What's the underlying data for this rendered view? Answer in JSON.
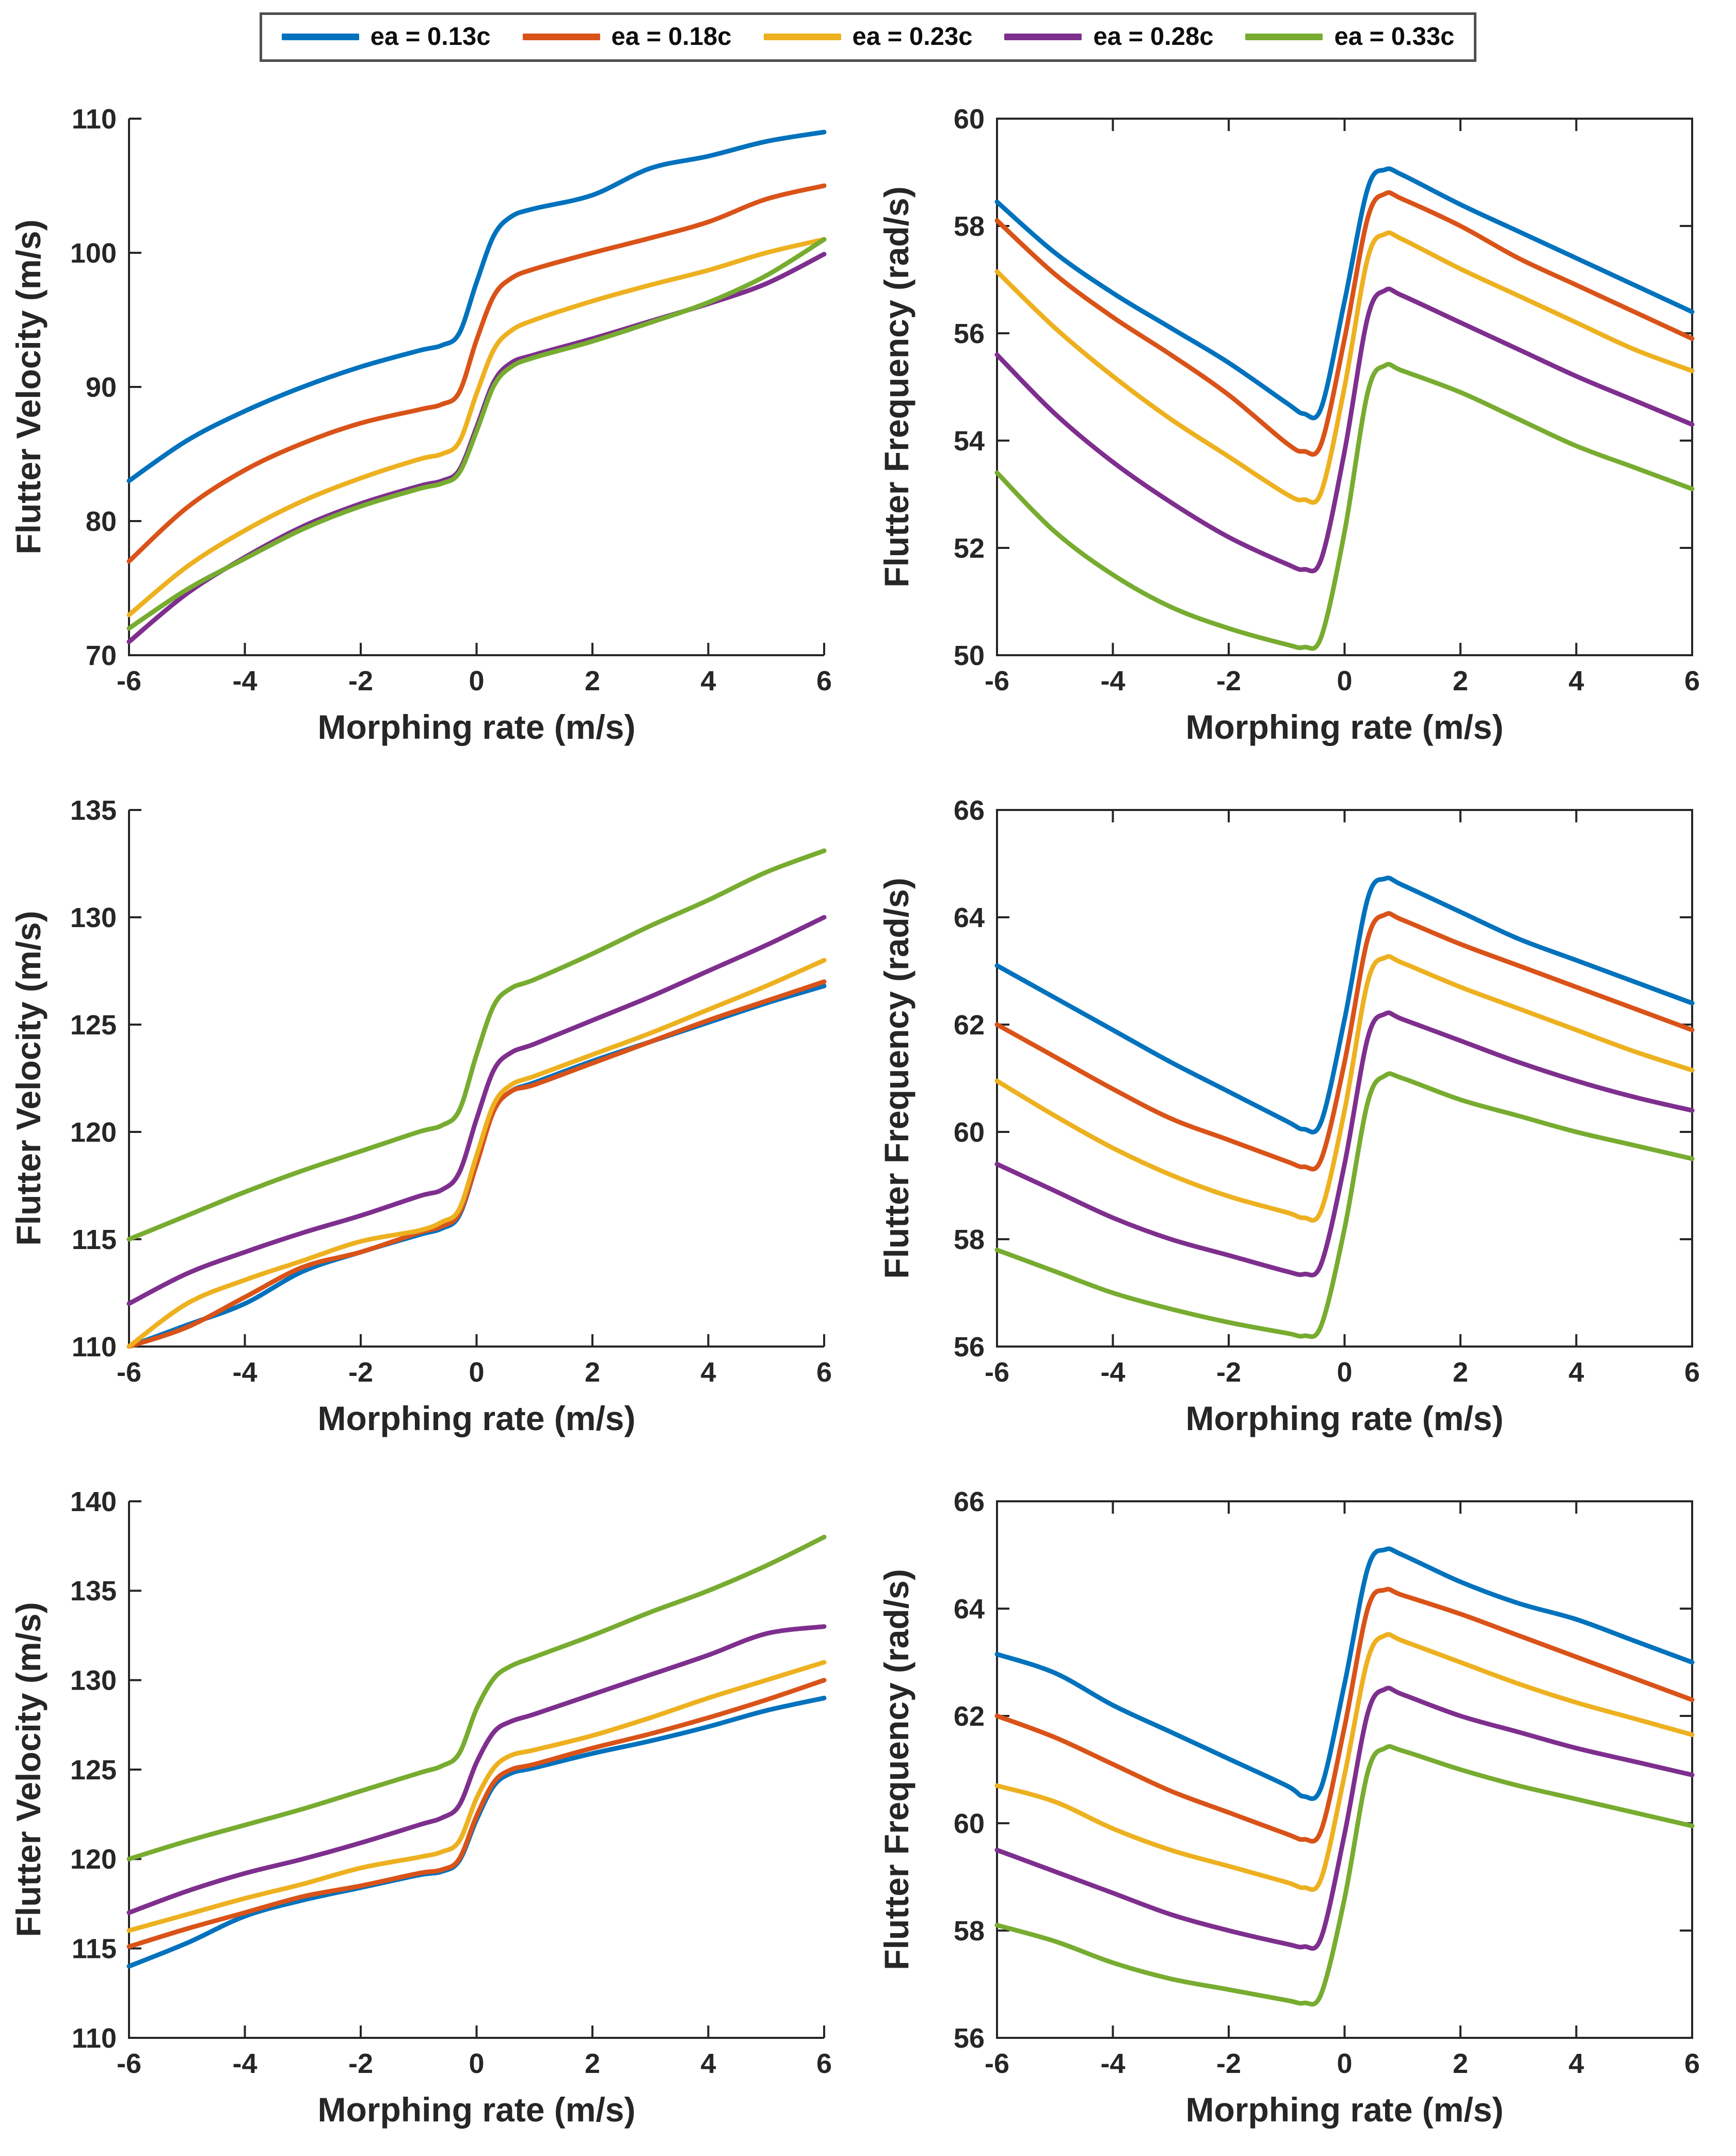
{
  "figure": {
    "background": "#ffffff",
    "axis_color": "#262626",
    "text_color": "#262626"
  },
  "legend": {
    "border_color": "#4f4f4f",
    "items": [
      {
        "label": "ea = 0.13c",
        "color": "#0072BD"
      },
      {
        "label": "ea = 0.18c",
        "color": "#D95319"
      },
      {
        "label": "ea = 0.23c",
        "color": "#EDB120"
      },
      {
        "label": "ea = 0.28c",
        "color": "#7E2F8E"
      },
      {
        "label": "ea = 0.33c",
        "color": "#77AC30"
      }
    ]
  },
  "chart_data": [
    {
      "type": "line",
      "position": "row1-left",
      "xlabel": "Morphing rate (m/s)",
      "ylabel": "Flutter Velocity (m/s)",
      "xlim": [
        -6,
        6
      ],
      "ylim": [
        70,
        110
      ],
      "xticks": [
        -6,
        -4,
        -2,
        0,
        2,
        4,
        6
      ],
      "yticks": [
        70,
        80,
        90,
        100,
        110
      ],
      "box": false,
      "grid": false,
      "x": [
        -6,
        -5,
        -4,
        -3,
        -2,
        -1,
        -0.6,
        -0.3,
        0,
        0.3,
        0.6,
        1,
        2,
        3,
        4,
        5,
        6
      ],
      "series": [
        {
          "name": "ea = 0.13c",
          "color": "#0072BD",
          "values": [
            83,
            86,
            88.2,
            90,
            91.5,
            92.7,
            93.1,
            94,
            97.8,
            101.3,
            102.7,
            103.3,
            104.3,
            106.3,
            107.2,
            108.3,
            109
          ]
        },
        {
          "name": "ea = 0.18c",
          "color": "#D95319",
          "values": [
            77,
            81,
            83.8,
            85.8,
            87.3,
            88.3,
            88.7,
            89.6,
            93.5,
            96.8,
            98.1,
            98.8,
            100,
            101.1,
            102.3,
            104,
            105
          ]
        },
        {
          "name": "ea = 0.23c",
          "color": "#EDB120",
          "values": [
            73,
            76.6,
            79.3,
            81.5,
            83.2,
            84.6,
            85,
            85.9,
            89.5,
            92.8,
            94.2,
            95,
            96.4,
            97.6,
            98.7,
            100,
            101
          ]
        },
        {
          "name": "ea = 0.28c",
          "color": "#7E2F8E",
          "values": [
            71,
            74.6,
            77.3,
            79.6,
            81.3,
            82.6,
            83,
            83.8,
            87,
            90.4,
            91.8,
            92.4,
            93.6,
            94.9,
            96.2,
            97.7,
            99.9
          ]
        },
        {
          "name": "ea = 0.33c",
          "color": "#77AC30",
          "values": [
            72,
            74.9,
            77.2,
            79.4,
            81.1,
            82.4,
            82.8,
            83.6,
            86.7,
            90.1,
            91.5,
            92.2,
            93.4,
            94.8,
            96.3,
            98.3,
            101
          ]
        }
      ]
    },
    {
      "type": "line",
      "position": "row1-right",
      "xlabel": "Morphing rate (m/s)",
      "ylabel": "Flutter Frequency (rad/s)",
      "xlim": [
        -6,
        6
      ],
      "ylim": [
        50,
        60
      ],
      "xticks": [
        -6,
        -4,
        -2,
        0,
        2,
        4,
        6
      ],
      "yticks": [
        50,
        52,
        54,
        56,
        58,
        60
      ],
      "box": true,
      "grid": false,
      "x": [
        -6,
        -5,
        -4,
        -3,
        -2,
        -1,
        -0.7,
        -0.4,
        0,
        0.4,
        0.7,
        1,
        2,
        3,
        4,
        5,
        6
      ],
      "series": [
        {
          "name": "ea = 0.13c",
          "color": "#0072BD",
          "values": [
            58.45,
            57.5,
            56.75,
            56.1,
            55.45,
            54.7,
            54.5,
            54.62,
            56.6,
            58.7,
            59.05,
            58.95,
            58.4,
            57.9,
            57.4,
            56.9,
            56.4
          ]
        },
        {
          "name": "ea = 0.18c",
          "color": "#D95319",
          "values": [
            58.1,
            57.1,
            56.3,
            55.6,
            54.85,
            53.95,
            53.8,
            53.95,
            55.9,
            58.15,
            58.6,
            58.5,
            58,
            57.4,
            56.9,
            56.4,
            55.9
          ]
        },
        {
          "name": "ea = 0.23c",
          "color": "#EDB120",
          "values": [
            57.15,
            56.1,
            55.2,
            54.4,
            53.7,
            53,
            52.9,
            53.05,
            55,
            57.4,
            57.85,
            57.75,
            57.2,
            56.7,
            56.2,
            55.7,
            55.3
          ]
        },
        {
          "name": "ea = 0.28c",
          "color": "#7E2F8E",
          "values": [
            55.6,
            54.5,
            53.6,
            52.85,
            52.2,
            51.7,
            51.6,
            51.8,
            53.8,
            56.3,
            56.8,
            56.7,
            56.2,
            55.7,
            55.2,
            54.75,
            54.3
          ]
        },
        {
          "name": "ea = 0.33c",
          "color": "#77AC30",
          "values": [
            53.4,
            52.3,
            51.5,
            50.9,
            50.5,
            50.2,
            50.15,
            50.35,
            52.3,
            54.9,
            55.4,
            55.3,
            54.9,
            54.4,
            53.9,
            53.5,
            53.1
          ]
        }
      ]
    },
    {
      "type": "line",
      "position": "row2-left",
      "xlabel": "Morphing rate (m/s)",
      "ylabel": "Flutter Velocity (m/s)",
      "xlim": [
        -6,
        6
      ],
      "ylim": [
        110,
        135
      ],
      "xticks": [
        -6,
        -4,
        -2,
        0,
        2,
        4,
        6
      ],
      "yticks": [
        110,
        115,
        120,
        125,
        130,
        135
      ],
      "box": false,
      "grid": false,
      "x": [
        -6,
        -5,
        -4,
        -3,
        -2,
        -1,
        -0.6,
        -0.3,
        0,
        0.3,
        0.6,
        1,
        2,
        3,
        4,
        5,
        6
      ],
      "series": [
        {
          "name": "ea = 0.13c",
          "color": "#0072BD",
          "values": [
            110,
            111,
            112,
            113.5,
            114.4,
            115.2,
            115.5,
            116.1,
            118.5,
            121,
            121.9,
            122.3,
            123.3,
            124.2,
            125.1,
            126,
            126.8
          ]
        },
        {
          "name": "ea = 0.18c",
          "color": "#D95319",
          "values": [
            110,
            110.9,
            112.3,
            113.7,
            114.4,
            115.3,
            115.6,
            116.2,
            118.5,
            121,
            121.9,
            122.2,
            123.2,
            124.2,
            125.2,
            126.1,
            127
          ]
        },
        {
          "name": "ea = 0.23c",
          "color": "#EDB120",
          "values": [
            110,
            112,
            113.1,
            114,
            114.9,
            115.4,
            115.8,
            116.4,
            118.9,
            121.3,
            122.2,
            122.6,
            123.6,
            124.6,
            125.7,
            126.8,
            128
          ]
        },
        {
          "name": "ea = 0.28c",
          "color": "#7E2F8E",
          "values": [
            112,
            113.4,
            114.4,
            115.3,
            116.1,
            117,
            117.3,
            118.1,
            120.6,
            122.9,
            123.7,
            124.1,
            125.2,
            126.3,
            127.5,
            128.7,
            130
          ]
        },
        {
          "name": "ea = 0.33c",
          "color": "#77AC30",
          "values": [
            115,
            116.1,
            117.2,
            118.2,
            119.1,
            120,
            120.3,
            121,
            123.6,
            125.9,
            126.7,
            127.1,
            128.3,
            129.6,
            130.8,
            132.1,
            133.1
          ]
        }
      ]
    },
    {
      "type": "line",
      "position": "row2-right",
      "xlabel": "Morphing rate (m/s)",
      "ylabel": "Flutter Frequency (rad/s)",
      "xlim": [
        -6,
        6
      ],
      "ylim": [
        56,
        66
      ],
      "xticks": [
        -6,
        -4,
        -2,
        0,
        2,
        4,
        6
      ],
      "yticks": [
        56,
        58,
        60,
        62,
        64,
        66
      ],
      "box": true,
      "grid": false,
      "x": [
        -6,
        -5,
        -4,
        -3,
        -2,
        -1,
        -0.7,
        -0.4,
        0,
        0.4,
        0.7,
        1,
        2,
        3,
        4,
        5,
        6
      ],
      "series": [
        {
          "name": "ea = 0.13c",
          "color": "#0072BD",
          "values": [
            63.1,
            62.5,
            61.9,
            61.3,
            60.75,
            60.2,
            60.05,
            60.2,
            62.1,
            64.35,
            64.72,
            64.6,
            64.1,
            63.6,
            63.2,
            62.8,
            62.4
          ]
        },
        {
          "name": "ea = 0.18c",
          "color": "#D95319",
          "values": [
            62,
            61.4,
            60.8,
            60.25,
            59.85,
            59.45,
            59.35,
            59.5,
            61.3,
            63.6,
            64.05,
            63.95,
            63.5,
            63.1,
            62.7,
            62.3,
            61.9
          ]
        },
        {
          "name": "ea = 0.23c",
          "color": "#EDB120",
          "values": [
            60.95,
            60.3,
            59.7,
            59.2,
            58.8,
            58.5,
            58.4,
            58.55,
            60.4,
            62.8,
            63.25,
            63.15,
            62.7,
            62.3,
            61.9,
            61.5,
            61.15
          ]
        },
        {
          "name": "ea = 0.28c",
          "color": "#7E2F8E",
          "values": [
            59.4,
            58.9,
            58.4,
            58,
            57.7,
            57.4,
            57.35,
            57.55,
            59.4,
            61.75,
            62.2,
            62.1,
            61.7,
            61.3,
            60.95,
            60.65,
            60.4
          ]
        },
        {
          "name": "ea = 0.33c",
          "color": "#77AC30",
          "values": [
            57.8,
            57.4,
            57,
            56.7,
            56.45,
            56.25,
            56.2,
            56.4,
            58.2,
            60.55,
            61.05,
            61,
            60.6,
            60.3,
            60,
            59.75,
            59.5
          ]
        }
      ]
    },
    {
      "type": "line",
      "position": "row3-left",
      "xlabel": "Morphing rate (m/s)",
      "ylabel": "Flutter Velocity (m/s)",
      "xlim": [
        -6,
        6
      ],
      "ylim": [
        110,
        140
      ],
      "xticks": [
        -6,
        -4,
        -2,
        0,
        2,
        4,
        6
      ],
      "yticks": [
        110,
        115,
        120,
        125,
        130,
        135,
        140
      ],
      "box": false,
      "grid": false,
      "x": [
        -6,
        -5,
        -4,
        -3,
        -2,
        -1,
        -0.6,
        -0.3,
        0,
        0.3,
        0.6,
        1,
        2,
        3,
        4,
        5,
        6
      ],
      "series": [
        {
          "name": "ea = 0.13c",
          "color": "#0072BD",
          "values": [
            114,
            115.3,
            116.8,
            117.7,
            118.4,
            119.1,
            119.3,
            119.9,
            122.2,
            124.1,
            124.8,
            125.1,
            125.9,
            126.6,
            127.4,
            128.3,
            129
          ]
        },
        {
          "name": "ea = 0.18c",
          "color": "#D95319",
          "values": [
            115.1,
            116.1,
            117,
            117.9,
            118.5,
            119.2,
            119.4,
            120,
            122.4,
            124.3,
            125,
            125.3,
            126.2,
            127,
            127.9,
            128.9,
            130
          ]
        },
        {
          "name": "ea = 0.23c",
          "color": "#EDB120",
          "values": [
            116,
            116.9,
            117.8,
            118.6,
            119.5,
            120.1,
            120.4,
            121,
            123.4,
            125.1,
            125.8,
            126.1,
            126.9,
            127.9,
            129,
            130,
            131
          ]
        },
        {
          "name": "ea = 0.28c",
          "color": "#7E2F8E",
          "values": [
            117,
            118.2,
            119.2,
            120,
            120.9,
            121.9,
            122.3,
            123,
            125.4,
            127.1,
            127.7,
            128.1,
            129.2,
            130.3,
            131.4,
            132.6,
            133
          ]
        },
        {
          "name": "ea = 0.33c",
          "color": "#77AC30",
          "values": [
            120,
            121,
            121.9,
            122.8,
            123.8,
            124.8,
            125.2,
            125.9,
            128.4,
            130.1,
            130.8,
            131.3,
            132.5,
            133.8,
            135,
            136.4,
            138
          ]
        }
      ]
    },
    {
      "type": "line",
      "position": "row3-right",
      "xlabel": "Morphing rate (m/s)",
      "ylabel": "Flutter Frequency (rad/s)",
      "xlim": [
        -6,
        6
      ],
      "ylim": [
        56,
        66
      ],
      "xticks": [
        -6,
        -4,
        -2,
        0,
        2,
        4,
        6
      ],
      "yticks": [
        56,
        58,
        60,
        62,
        64,
        66
      ],
      "box": true,
      "grid": false,
      "x": [
        -6,
        -5,
        -4,
        -3,
        -2,
        -1,
        -0.7,
        -0.4,
        0,
        0.4,
        0.7,
        1,
        2,
        3,
        4,
        5,
        6
      ],
      "series": [
        {
          "name": "ea = 0.13c",
          "color": "#0072BD",
          "values": [
            63.15,
            62.8,
            62.2,
            61.7,
            61.2,
            60.7,
            60.5,
            60.68,
            62.6,
            64.75,
            65.1,
            65,
            64.5,
            64.1,
            63.8,
            63.4,
            63
          ]
        },
        {
          "name": "ea = 0.18c",
          "color": "#D95319",
          "values": [
            62,
            61.6,
            61.1,
            60.6,
            60.2,
            59.8,
            59.7,
            59.88,
            61.8,
            64,
            64.35,
            64.25,
            63.9,
            63.5,
            63.1,
            62.7,
            62.3
          ]
        },
        {
          "name": "ea = 0.23c",
          "color": "#EDB120",
          "values": [
            60.7,
            60.4,
            59.9,
            59.5,
            59.2,
            58.9,
            58.8,
            58.98,
            60.9,
            63.05,
            63.5,
            63.4,
            63,
            62.6,
            62.25,
            61.95,
            61.65
          ]
        },
        {
          "name": "ea = 0.28c",
          "color": "#7E2F8E",
          "values": [
            59.5,
            59.1,
            58.7,
            58.3,
            58,
            57.75,
            57.7,
            57.88,
            59.8,
            62.05,
            62.5,
            62.4,
            62,
            61.7,
            61.4,
            61.15,
            60.9
          ]
        },
        {
          "name": "ea = 0.33c",
          "color": "#77AC30",
          "values": [
            58.1,
            57.8,
            57.4,
            57.1,
            56.9,
            56.7,
            56.65,
            56.83,
            58.6,
            60.95,
            61.4,
            61.35,
            61,
            60.7,
            60.45,
            60.2,
            59.95
          ]
        }
      ]
    }
  ]
}
